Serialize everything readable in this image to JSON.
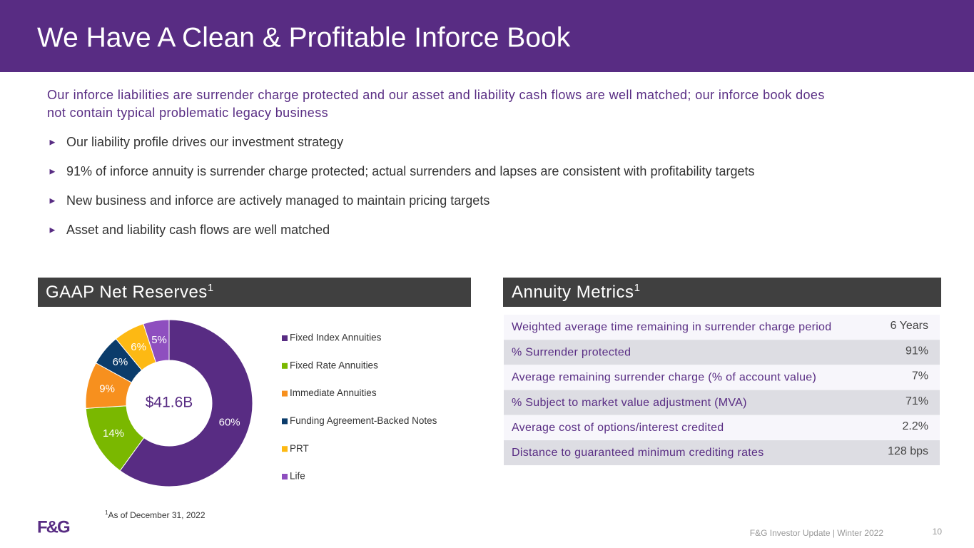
{
  "header": {
    "title": "We Have A Clean & Profitable Inforce Book"
  },
  "intro": [
    "Our inforce liabilities are surrender charge protected and our asset and liability cash flows are well matched; our inforce book does",
    "not contain typical problematic legacy business"
  ],
  "bullet_symbol": "►",
  "bullets": [
    "Our liability profile drives our investment strategy",
    "91% of inforce annuity is surrender charge protected; actual surrenders and lapses are consistent with profitability targets",
    "New business and inforce are actively managed to maintain pricing targets",
    "Asset and liability cash flows are well matched"
  ],
  "chart_data": {
    "type": "donut",
    "title": "GAAP Net Reserves",
    "title_superscript": "1",
    "center_label": "$41.6B",
    "categories": [
      "Fixed Index Annuities",
      "Fixed Rate Annuities",
      "Immediate Annuities",
      "Funding Agreement-Backed Notes",
      "PRT",
      "Life"
    ],
    "values": [
      60,
      14,
      9,
      6,
      6,
      5
    ],
    "value_labels": [
      "60%",
      "14%",
      "9%",
      "6%",
      "6%",
      "5%"
    ],
    "colors": [
      "#582c83",
      "#7ab800",
      "#f7901e",
      "#0b3c6b",
      "#fdb913",
      "#8e4fbf"
    ],
    "legend": "right"
  },
  "metrics": {
    "title": "Annuity Metrics",
    "title_superscript": "1",
    "rows": [
      [
        "Weighted average time remaining in surrender charge period",
        "6 Years"
      ],
      [
        "% Surrender protected",
        "91%"
      ],
      [
        "Average remaining surrender charge (% of account value)",
        "7%"
      ],
      [
        "% Subject to market value adjustment (MVA)",
        "71%"
      ],
      [
        "Average cost of options/interest credited",
        "2.2%"
      ],
      [
        "Distance to guaranteed minimum crediting rates",
        "128 bps"
      ]
    ]
  },
  "footnote": {
    "marker": "1",
    "text": "As of December 31, 2022"
  },
  "footer": {
    "logo": "F&G",
    "text": "F&G Investor Update | Winter 2022",
    "page": "10"
  }
}
